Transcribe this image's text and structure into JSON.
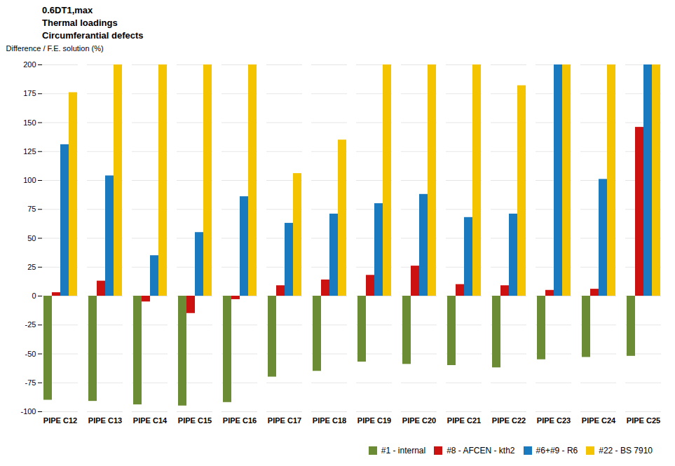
{
  "chart_data": {
    "type": "bar",
    "categories": [
      "PIPE C12",
      "PIPE C13",
      "PIPE C14",
      "PIPE C15",
      "PIPE C16",
      "PIPE C17",
      "PIPE C18",
      "PIPE C19",
      "PIPE C20",
      "PIPE C21",
      "PIPE C22",
      "PIPE C23",
      "PIPE C24",
      "PIPE C25"
    ],
    "series": [
      {
        "name": "#1 - internal",
        "color": "#6b8c35",
        "values": [
          -90,
          -91,
          -94,
          -95,
          -92,
          -70,
          -65,
          -57,
          -59,
          -60,
          -62,
          -55,
          -53,
          -52
        ]
      },
      {
        "name": "#8 - AFCEN - kth2",
        "color": "#cc1111",
        "values": [
          3,
          13,
          -5,
          -15,
          -3,
          9,
          14,
          18,
          26,
          10,
          9,
          5,
          6,
          146
        ]
      },
      {
        "name": "#6+#9 - R6",
        "color": "#1a7abf",
        "values": [
          131,
          104,
          35,
          55,
          86,
          63,
          71,
          80,
          88,
          68,
          71,
          200,
          101,
          200
        ]
      },
      {
        "name": "#22 - BS 7910",
        "color": "#f5c400",
        "values": [
          176,
          200,
          200,
          200,
          200,
          106,
          135,
          200,
          200,
          200,
          182,
          200,
          200,
          200
        ]
      }
    ],
    "ylabel": "Difference / F.E. solution (%)",
    "annotations": [
      "0.6DT1,max",
      "Thermal loadings",
      "Circumferantial defects"
    ],
    "ylim": [
      -100,
      200
    ],
    "yticks": [
      -100,
      -75,
      -50,
      -25,
      0,
      25,
      50,
      75,
      100,
      125,
      150,
      175,
      200
    ],
    "grid": true,
    "legend": "lower right"
  }
}
